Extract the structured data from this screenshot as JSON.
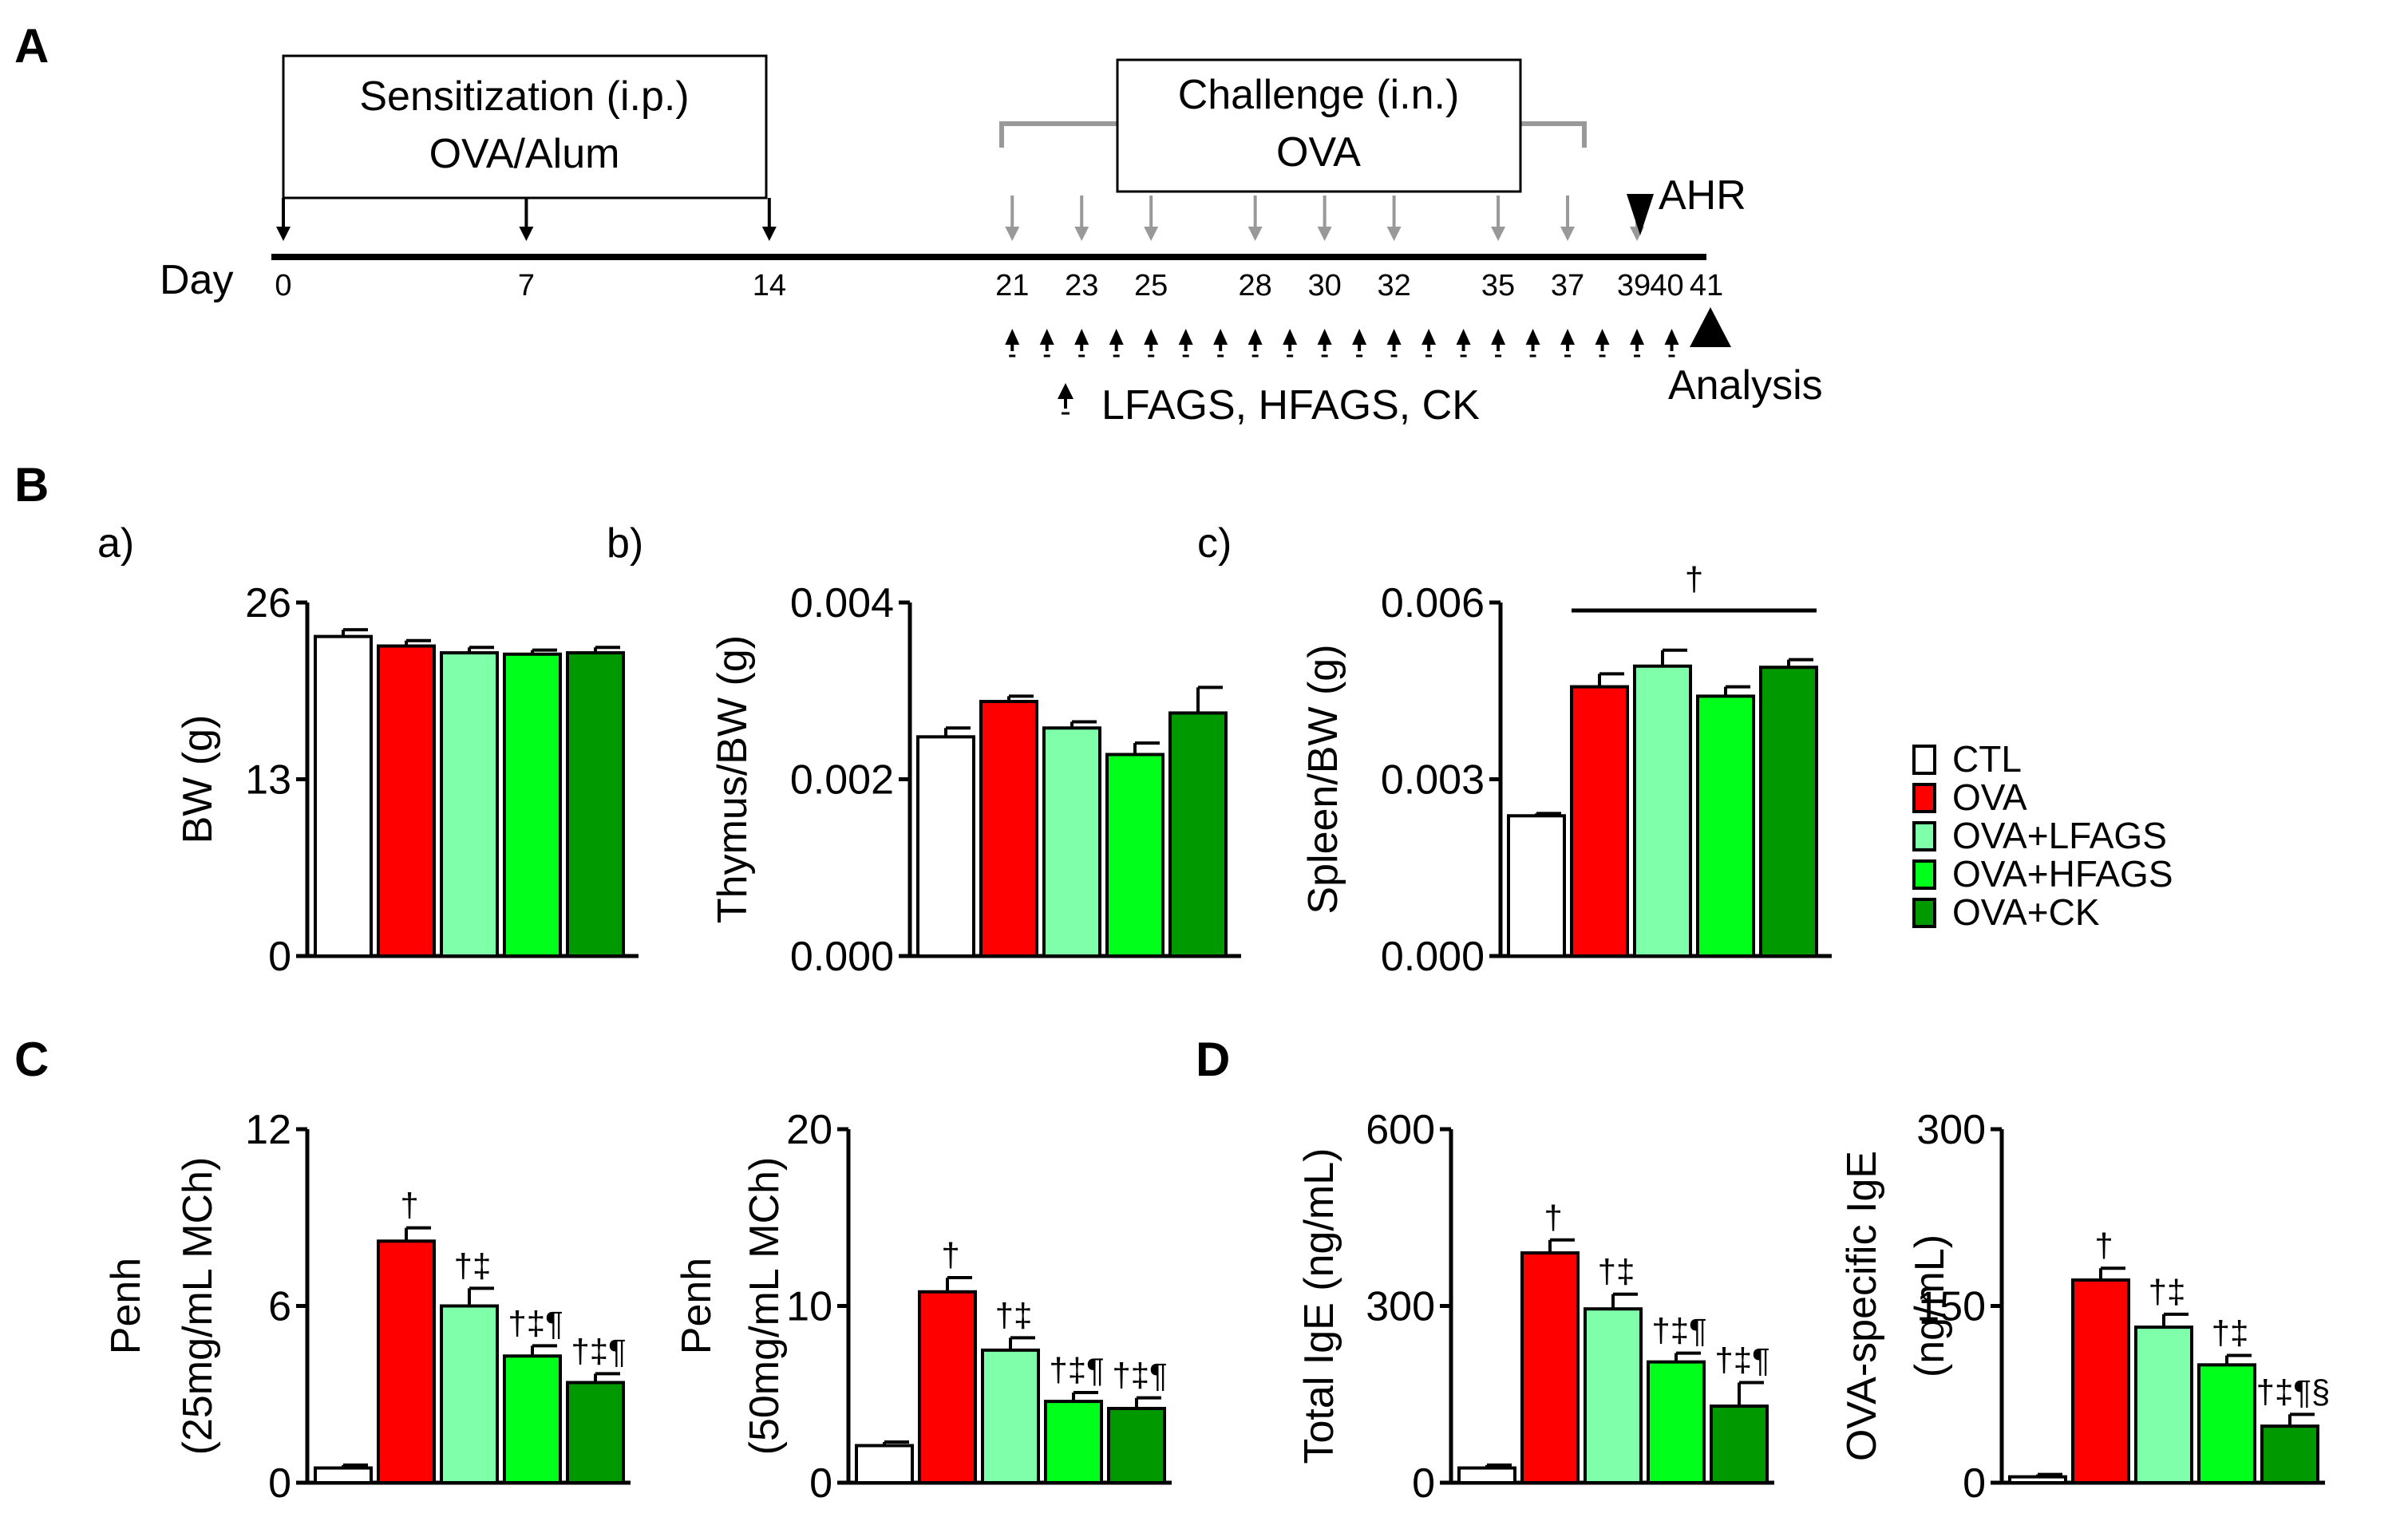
{
  "panels": {
    "A": "A",
    "B": "B",
    "C": "C",
    "D": "D"
  },
  "timeline": {
    "sensitization": {
      "line1": "Sensitization (i.p.)",
      "line2": "OVA/Alum"
    },
    "challenge": {
      "line1": "Challenge (i.n.)",
      "line2": "OVA"
    },
    "day_label": "Day",
    "days": [
      "0",
      "7",
      "14",
      "21",
      "23",
      "25",
      "28",
      "30",
      "32",
      "35",
      "37",
      "39",
      "40",
      "41"
    ],
    "ahr_label": "AHR",
    "analysis_label": "Analysis",
    "treatment_label": "LFAGS, HFAGS, CK"
  },
  "sublabels": {
    "a": "a)",
    "b": "b)",
    "c": "c)"
  },
  "legend": [
    {
      "label": "CTL",
      "color": "#ffffff"
    },
    {
      "label": "OVA",
      "color": "#ff0000"
    },
    {
      "label": "OVA+LFAGS",
      "color": "#80ffaa"
    },
    {
      "label": "OVA+HFAGS",
      "color": "#00ff1a"
    },
    {
      "label": "OVA+CK",
      "color": "#009900"
    }
  ],
  "chart_data": [
    {
      "id": "bw",
      "type": "bar",
      "panel": "B a)",
      "ylabel": "BW (g)",
      "ylabel2": "",
      "ylim": [
        0,
        26
      ],
      "yticks": [
        "0",
        "13",
        "26"
      ],
      "categories": [
        "CTL",
        "OVA",
        "OVA+LFAGS",
        "OVA+HFAGS",
        "OVA+CK"
      ],
      "values": [
        23.5,
        22.8,
        22.3,
        22.2,
        22.3
      ],
      "errors": [
        0.5,
        0.4,
        0.4,
        0.3,
        0.4
      ],
      "sig": [
        "",
        "",
        "",
        "",
        ""
      ],
      "group_sig": ""
    },
    {
      "id": "thymus",
      "type": "bar",
      "panel": "B b)",
      "ylabel": "Thymus/BW (g)",
      "ylabel2": "",
      "ylim": [
        0,
        0.004
      ],
      "yticks": [
        "0.000",
        "0.002",
        "0.004"
      ],
      "categories": [
        "CTL",
        "OVA",
        "OVA+LFAGS",
        "OVA+HFAGS",
        "OVA+CK"
      ],
      "values": [
        0.00248,
        0.00288,
        0.00258,
        0.00228,
        0.00275
      ],
      "errors": [
        0.0001,
        6e-05,
        7e-05,
        0.00013,
        0.00029
      ],
      "sig": [
        "",
        "",
        "",
        "",
        ""
      ],
      "group_sig": ""
    },
    {
      "id": "spleen",
      "type": "bar",
      "panel": "B c)",
      "ylabel": "Spleen/BW (g)",
      "ylabel2": "",
      "ylim": [
        0,
        0.006
      ],
      "yticks": [
        "0.000",
        "0.003",
        "0.006"
      ],
      "categories": [
        "CTL",
        "OVA",
        "OVA+LFAGS",
        "OVA+HFAGS",
        "OVA+CK"
      ],
      "values": [
        0.00238,
        0.00457,
        0.00492,
        0.00441,
        0.0049
      ],
      "errors": [
        4e-05,
        0.00022,
        0.00027,
        0.00016,
        0.00013
      ],
      "sig": [
        "",
        "",
        "",
        "",
        ""
      ],
      "group_sig": "†"
    },
    {
      "id": "penh25",
      "type": "bar",
      "panel": "C",
      "ylabel": "Penh",
      "ylabel2": "(25mg/mL MCh)",
      "ylim": [
        0,
        12
      ],
      "yticks": [
        "0",
        "6",
        "12"
      ],
      "categories": [
        "CTL",
        "OVA",
        "OVA+LFAGS",
        "OVA+HFAGS",
        "OVA+CK"
      ],
      "values": [
        0.5,
        8.2,
        6.0,
        4.3,
        3.4
      ],
      "errors": [
        0.1,
        0.45,
        0.6,
        0.35,
        0.3
      ],
      "sig": [
        "",
        "†",
        "†‡",
        "†‡¶",
        "†‡¶"
      ],
      "group_sig": ""
    },
    {
      "id": "penh50",
      "type": "bar",
      "panel": "C",
      "ylabel": "Penh",
      "ylabel2": "(50mg/mL MCh)",
      "ylim": [
        0,
        20
      ],
      "yticks": [
        "0",
        "10",
        "20"
      ],
      "categories": [
        "CTL",
        "OVA",
        "OVA+LFAGS",
        "OVA+HFAGS",
        "OVA+CK"
      ],
      "values": [
        2.1,
        10.8,
        7.5,
        4.6,
        4.2
      ],
      "errors": [
        0.2,
        0.8,
        0.7,
        0.5,
        0.6
      ],
      "sig": [
        "",
        "†",
        "†‡",
        "†‡¶",
        "†‡¶"
      ],
      "group_sig": ""
    },
    {
      "id": "totalige",
      "type": "bar",
      "panel": "D",
      "ylabel": "Total IgE (ng/mL)",
      "ylabel2": "",
      "ylim": [
        0,
        600
      ],
      "yticks": [
        "0",
        "300",
        "600"
      ],
      "categories": [
        "CTL",
        "OVA",
        "OVA+LFAGS",
        "OVA+HFAGS",
        "OVA+CK"
      ],
      "values": [
        25,
        390,
        295,
        205,
        130
      ],
      "errors": [
        5,
        22,
        25,
        15,
        40
      ],
      "sig": [
        "",
        "†",
        "†‡",
        "†‡¶",
        "†‡¶"
      ],
      "group_sig": ""
    },
    {
      "id": "ovaige",
      "type": "bar",
      "panel": "D",
      "ylabel": "OVA-specific IgE",
      "ylabel2": "(ng/mL)",
      "ylim": [
        0,
        300
      ],
      "yticks": [
        "0",
        "150",
        "300"
      ],
      "categories": [
        "CTL",
        "OVA",
        "OVA+LFAGS",
        "OVA+HFAGS",
        "OVA+CK"
      ],
      "values": [
        5,
        172,
        132,
        100,
        48
      ],
      "errors": [
        2,
        10,
        11,
        8,
        10
      ],
      "sig": [
        "",
        "†",
        "†‡",
        "†‡",
        "†‡¶§"
      ],
      "group_sig": ""
    }
  ]
}
